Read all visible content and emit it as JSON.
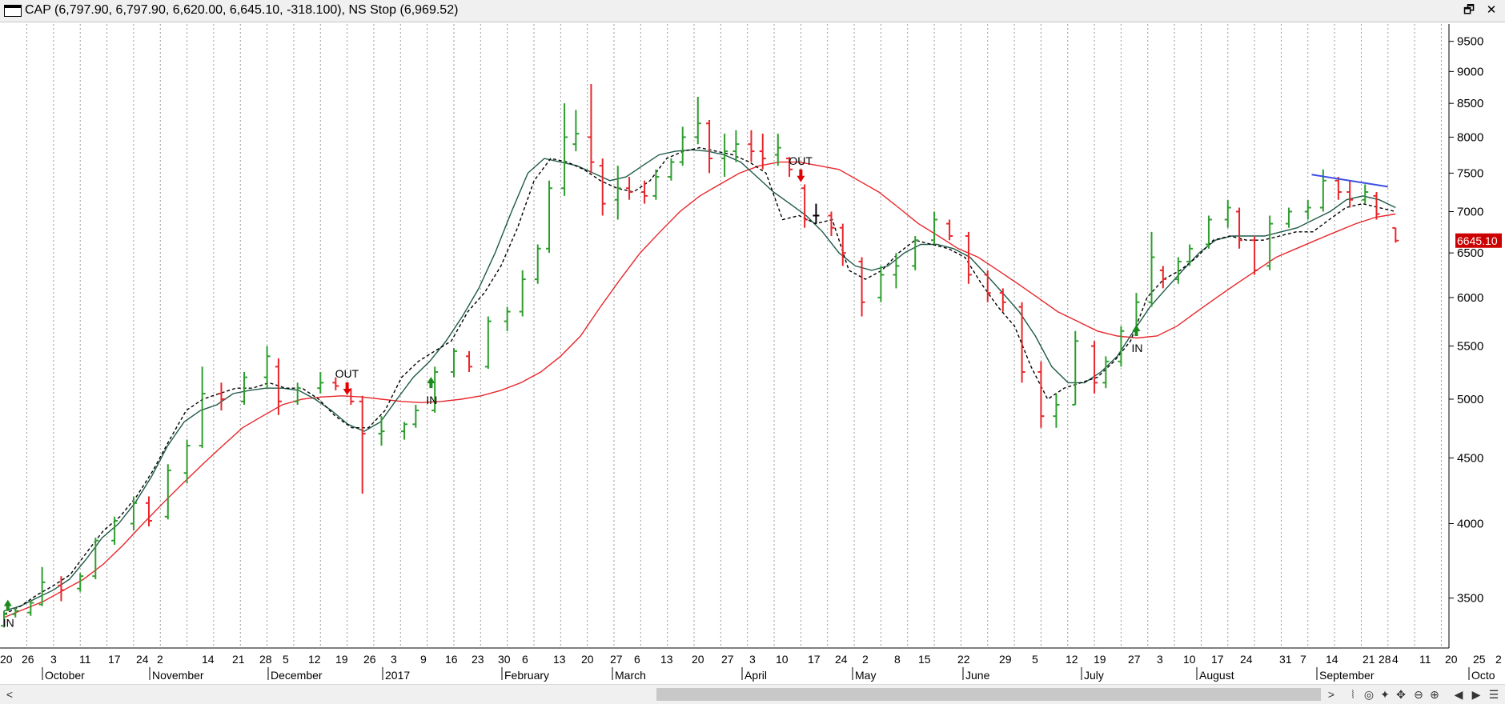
{
  "window": {
    "title": "CAP (6,797.90, 6,797.90, 6,620.00, 6,645.10, -318.100), NS Stop (6,969.52)",
    "restore_label": "🗗",
    "close_label": "✕"
  },
  "statusbar": {
    "left_arrow": "<",
    "right_arrow": ">",
    "buttons": [
      "⦚",
      "◎",
      "✦",
      "✥",
      "⊖",
      "⊕",
      "◀",
      "▶",
      "☰"
    ]
  },
  "colors": {
    "up_bar": "#2e9e2e",
    "down_bar": "#e8262b",
    "neutral_bar": "#000000",
    "ma_fast": "#000000",
    "ma_mid": "#1f5a4a",
    "ma_slow": "#e8262b",
    "trendline": "#3c4fe0",
    "last_price_bg": "#cc0000",
    "grid": "#9a9a9a",
    "signal_in": "#1a8a1a",
    "signal_out": "#e00000"
  },
  "chart_data": {
    "type": "ohlc",
    "title": "CAP (6,797.90, 6,797.90, 6,620.00, 6,645.10, -318.100), NS Stop (6,969.52)",
    "y_scale": "log",
    "ylim": [
      3200,
      9800
    ],
    "grid": "vertical dotted",
    "y_ticks": [
      9500,
      9000,
      8500,
      8000,
      7500,
      7000,
      6500,
      6000,
      5500,
      5000,
      4500,
      4000,
      3500
    ],
    "last_price_label": "6645.10",
    "x_day_ticks": [
      "20",
      "26",
      "3",
      "11",
      "17",
      "24",
      "2",
      "14",
      "21",
      "28",
      "5",
      "12",
      "19",
      "26",
      "3",
      "9",
      "16",
      "23",
      "30",
      "6",
      "13",
      "20",
      "27",
      "6",
      "13",
      "20",
      "27",
      "3",
      "10",
      "17",
      "24",
      "2",
      "8",
      "15",
      "22",
      "29",
      "5",
      "12",
      "19",
      "27",
      "3",
      "10",
      "17",
      "24",
      "31",
      "7",
      "14",
      "21",
      "28",
      "4",
      "11",
      "20",
      "25",
      "2"
    ],
    "x_month_labels": [
      "October",
      "November",
      "December",
      "2017",
      "February",
      "March",
      "April",
      "May",
      "June",
      "July",
      "August",
      "September",
      "Octo"
    ],
    "ohlc": [
      {
        "date": "2016-09-20",
        "o": 3330,
        "h": 3420,
        "l": 3320,
        "c": 3400
      },
      {
        "date": "2016-09-23",
        "o": 3400,
        "h": 3440,
        "l": 3380,
        "c": 3420
      },
      {
        "date": "2016-09-27",
        "o": 3410,
        "h": 3480,
        "l": 3390,
        "c": 3470
      },
      {
        "date": "2016-09-30",
        "o": 3460,
        "h": 3700,
        "l": 3450,
        "c": 3600
      },
      {
        "date": "2016-10-05",
        "o": 3580,
        "h": 3640,
        "l": 3480,
        "c": 3550
      },
      {
        "date": "2016-10-10",
        "o": 3560,
        "h": 3660,
        "l": 3540,
        "c": 3640
      },
      {
        "date": "2016-10-14",
        "o": 3640,
        "h": 3900,
        "l": 3620,
        "c": 3880
      },
      {
        "date": "2016-10-19",
        "o": 3880,
        "h": 4050,
        "l": 3850,
        "c": 4020
      },
      {
        "date": "2016-10-24",
        "o": 4000,
        "h": 4200,
        "l": 3950,
        "c": 4150
      },
      {
        "date": "2016-10-28",
        "o": 4150,
        "h": 4200,
        "l": 3980,
        "c": 4020
      },
      {
        "date": "2016-11-02",
        "o": 4050,
        "h": 4450,
        "l": 4030,
        "c": 4400
      },
      {
        "date": "2016-11-07",
        "o": 4380,
        "h": 4650,
        "l": 4300,
        "c": 4600
      },
      {
        "date": "2016-11-11",
        "o": 4600,
        "h": 5300,
        "l": 4580,
        "c": 5050
      },
      {
        "date": "2016-11-16",
        "o": 5050,
        "h": 5150,
        "l": 4900,
        "c": 5000
      },
      {
        "date": "2016-11-22",
        "o": 4980,
        "h": 5250,
        "l": 4950,
        "c": 5200
      },
      {
        "date": "2016-11-28",
        "o": 5200,
        "h": 5500,
        "l": 5100,
        "c": 5400
      },
      {
        "date": "2016-12-01",
        "o": 5300,
        "h": 5380,
        "l": 4860,
        "c": 4980
      },
      {
        "date": "2016-12-06",
        "o": 4980,
        "h": 5150,
        "l": 4950,
        "c": 5100
      },
      {
        "date": "2016-12-12",
        "o": 5100,
        "h": 5250,
        "l": 5050,
        "c": 5150
      },
      {
        "date": "2016-12-16",
        "o": 5150,
        "h": 5200,
        "l": 5080,
        "c": 5120
      },
      {
        "date": "2016-12-20",
        "o": 5080,
        "h": 5100,
        "l": 4950,
        "c": 4980
      },
      {
        "date": "2016-12-23",
        "o": 4980,
        "h": 5030,
        "l": 4220,
        "c": 4700
      },
      {
        "date": "2016-12-28",
        "o": 4700,
        "h": 4850,
        "l": 4600,
        "c": 4720
      },
      {
        "date": "2017-01-03",
        "o": 4720,
        "h": 4800,
        "l": 4650,
        "c": 4780
      },
      {
        "date": "2017-01-06",
        "o": 4780,
        "h": 4950,
        "l": 4750,
        "c": 4900
      },
      {
        "date": "2017-01-11",
        "o": 4900,
        "h": 5300,
        "l": 4880,
        "c": 5250
      },
      {
        "date": "2017-01-16",
        "o": 5250,
        "h": 5480,
        "l": 5200,
        "c": 5450
      },
      {
        "date": "2017-01-20",
        "o": 5400,
        "h": 5450,
        "l": 5250,
        "c": 5300
      },
      {
        "date": "2017-01-25",
        "o": 5300,
        "h": 5800,
        "l": 5280,
        "c": 5750
      },
      {
        "date": "2017-01-30",
        "o": 5750,
        "h": 5900,
        "l": 5650,
        "c": 5850
      },
      {
        "date": "2017-02-03",
        "o": 5850,
        "h": 6300,
        "l": 5800,
        "c": 6200
      },
      {
        "date": "2017-02-07",
        "o": 6200,
        "h": 6600,
        "l": 6150,
        "c": 6550
      },
      {
        "date": "2017-02-10",
        "o": 6550,
        "h": 7400,
        "l": 6500,
        "c": 7300
      },
      {
        "date": "2017-02-14",
        "o": 7300,
        "h": 8500,
        "l": 7200,
        "c": 8000
      },
      {
        "date": "2017-02-17",
        "o": 7900,
        "h": 8400,
        "l": 7800,
        "c": 8050
      },
      {
        "date": "2017-02-21",
        "o": 8000,
        "h": 8800,
        "l": 7500,
        "c": 7650
      },
      {
        "date": "2017-02-24",
        "o": 7600,
        "h": 7700,
        "l": 6950,
        "c": 7100
      },
      {
        "date": "2017-02-28",
        "o": 7150,
        "h": 7600,
        "l": 6900,
        "c": 7300
      },
      {
        "date": "2017-03-03",
        "o": 7300,
        "h": 7450,
        "l": 7150,
        "c": 7250
      },
      {
        "date": "2017-03-07",
        "o": 7250,
        "h": 7400,
        "l": 7100,
        "c": 7200
      },
      {
        "date": "2017-03-10",
        "o": 7200,
        "h": 7550,
        "l": 7150,
        "c": 7450
      },
      {
        "date": "2017-03-14",
        "o": 7450,
        "h": 7700,
        "l": 7400,
        "c": 7650
      },
      {
        "date": "2017-03-17",
        "o": 7650,
        "h": 8150,
        "l": 7600,
        "c": 8000
      },
      {
        "date": "2017-03-21",
        "o": 8000,
        "h": 8600,
        "l": 7900,
        "c": 8200
      },
      {
        "date": "2017-03-24",
        "o": 8200,
        "h": 8250,
        "l": 7500,
        "c": 7700
      },
      {
        "date": "2017-03-28",
        "o": 7700,
        "h": 8050,
        "l": 7450,
        "c": 7800
      },
      {
        "date": "2017-03-31",
        "o": 7800,
        "h": 8100,
        "l": 7650,
        "c": 7900
      },
      {
        "date": "2017-04-04",
        "o": 7900,
        "h": 8100,
        "l": 7650,
        "c": 7800
      },
      {
        "date": "2017-04-07",
        "o": 7800,
        "h": 8050,
        "l": 7550,
        "c": 7700
      },
      {
        "date": "2017-04-11",
        "o": 7750,
        "h": 8050,
        "l": 7600,
        "c": 7850
      },
      {
        "date": "2017-04-14",
        "o": 7700,
        "h": 7720,
        "l": 7450,
        "c": 7550
      },
      {
        "date": "2017-04-18",
        "o": 7300,
        "h": 7350,
        "l": 6800,
        "c": 6900
      },
      {
        "date": "2017-04-21",
        "o": 6950,
        "h": 7100,
        "l": 6850,
        "c": 6950
      },
      {
        "date": "2017-04-25",
        "o": 6950,
        "h": 7000,
        "l": 6700,
        "c": 6800
      },
      {
        "date": "2017-04-28",
        "o": 6800,
        "h": 6850,
        "l": 6350,
        "c": 6500
      },
      {
        "date": "2017-05-03",
        "o": 6400,
        "h": 6450,
        "l": 5800,
        "c": 5950
      },
      {
        "date": "2017-05-08",
        "o": 6000,
        "h": 6350,
        "l": 5950,
        "c": 6250
      },
      {
        "date": "2017-05-12",
        "o": 6250,
        "h": 6500,
        "l": 6100,
        "c": 6350
      },
      {
        "date": "2017-05-17",
        "o": 6350,
        "h": 6700,
        "l": 6300,
        "c": 6650
      },
      {
        "date": "2017-05-22",
        "o": 6650,
        "h": 7000,
        "l": 6600,
        "c": 6900
      },
      {
        "date": "2017-05-26",
        "o": 6850,
        "h": 6900,
        "l": 6650,
        "c": 6700
      },
      {
        "date": "2017-05-31",
        "o": 6700,
        "h": 6750,
        "l": 6150,
        "c": 6250
      },
      {
        "date": "2017-06-05",
        "o": 6250,
        "h": 6300,
        "l": 5950,
        "c": 6050
      },
      {
        "date": "2017-06-09",
        "o": 6050,
        "h": 6100,
        "l": 5850,
        "c": 5950
      },
      {
        "date": "2017-06-14",
        "o": 5900,
        "h": 5950,
        "l": 5150,
        "c": 5250
      },
      {
        "date": "2017-06-19",
        "o": 5250,
        "h": 5350,
        "l": 4750,
        "c": 4850
      },
      {
        "date": "2017-06-23",
        "o": 4850,
        "h": 5050,
        "l": 4750,
        "c": 4950
      },
      {
        "date": "2017-06-28",
        "o": 4950,
        "h": 5650,
        "l": 4950,
        "c": 5550
      },
      {
        "date": "2017-07-03",
        "o": 5500,
        "h": 5550,
        "l": 5050,
        "c": 5150
      },
      {
        "date": "2017-07-06",
        "o": 5150,
        "h": 5400,
        "l": 5100,
        "c": 5350
      },
      {
        "date": "2017-07-10",
        "o": 5350,
        "h": 5700,
        "l": 5300,
        "c": 5650
      },
      {
        "date": "2017-07-14",
        "o": 5650,
        "h": 6050,
        "l": 5600,
        "c": 5950
      },
      {
        "date": "2017-07-18",
        "o": 5950,
        "h": 6750,
        "l": 5900,
        "c": 6450
      },
      {
        "date": "2017-07-21",
        "o": 6300,
        "h": 6350,
        "l": 6100,
        "c": 6200
      },
      {
        "date": "2017-07-25",
        "o": 6200,
        "h": 6450,
        "l": 6150,
        "c": 6400
      },
      {
        "date": "2017-07-28",
        "o": 6400,
        "h": 6600,
        "l": 6350,
        "c": 6550
      },
      {
        "date": "2017-08-02",
        "o": 6600,
        "h": 6950,
        "l": 6550,
        "c": 6900
      },
      {
        "date": "2017-08-07",
        "o": 6900,
        "h": 7150,
        "l": 6800,
        "c": 7050
      },
      {
        "date": "2017-08-10",
        "o": 7000,
        "h": 7050,
        "l": 6550,
        "c": 6650
      },
      {
        "date": "2017-08-14",
        "o": 6650,
        "h": 6700,
        "l": 6250,
        "c": 6300
      },
      {
        "date": "2017-08-18",
        "o": 6350,
        "h": 6950,
        "l": 6300,
        "c": 6850
      },
      {
        "date": "2017-08-23",
        "o": 6850,
        "h": 7050,
        "l": 6800,
        "c": 7000
      },
      {
        "date": "2017-08-28",
        "o": 7000,
        "h": 7150,
        "l": 6900,
        "c": 7050
      },
      {
        "date": "2017-09-01",
        "o": 7050,
        "h": 7550,
        "l": 7000,
        "c": 7400
      },
      {
        "date": "2017-09-05",
        "o": 7400,
        "h": 7450,
        "l": 7150,
        "c": 7250
      },
      {
        "date": "2017-09-08",
        "o": 7250,
        "h": 7400,
        "l": 7050,
        "c": 7150
      },
      {
        "date": "2017-09-12",
        "o": 7150,
        "h": 7350,
        "l": 7100,
        "c": 7250
      },
      {
        "date": "2017-09-15",
        "o": 7200,
        "h": 7250,
        "l": 6900,
        "c": 6970
      },
      {
        "date": "2017-09-20",
        "o": 6797.9,
        "h": 6797.9,
        "l": 6620,
        "c": 6645.1
      }
    ],
    "ma_fast": [
      3400,
      3450,
      3520,
      3580,
      3650,
      3800,
      3950,
      4050,
      4200,
      4400,
      4650,
      4900,
      5000,
      5050,
      5100,
      5100,
      5150,
      5100,
      5100,
      5000,
      4850,
      4750,
      4750,
      4900,
      5200,
      5350,
      5450,
      5550,
      5850,
      6050,
      6350,
      6800,
      7400,
      7700,
      7650,
      7550,
      7400,
      7300,
      7250,
      7400,
      7700,
      7800,
      7850,
      7800,
      7750,
      7650,
      7500,
      6900,
      6950,
      6850,
      6900,
      6300,
      6200,
      6300,
      6500,
      6650,
      6600,
      6550,
      6450,
      6150,
      5900,
      5700,
      5300,
      5000,
      5100,
      5150,
      5200,
      5350,
      5550,
      6000,
      6200,
      6300,
      6450,
      6650,
      6700,
      6650,
      6650,
      6700,
      6750,
      6750,
      6900,
      7050,
      7100,
      7050,
      7000
    ],
    "ma_mid": [
      3420,
      3450,
      3500,
      3550,
      3620,
      3750,
      3900,
      4000,
      4150,
      4350,
      4600,
      4800,
      4900,
      4950,
      5050,
      5080,
      5100,
      5100,
      5080,
      5000,
      4900,
      4780,
      4720,
      4800,
      5000,
      5200,
      5350,
      5550,
      5800,
      6100,
      6500,
      7000,
      7500,
      7700,
      7650,
      7600,
      7500,
      7400,
      7450,
      7600,
      7750,
      7800,
      7820,
      7800,
      7750,
      7650,
      7450,
      7250,
      7100,
      6950,
      6750,
      6500,
      6350,
      6300,
      6350,
      6500,
      6600,
      6600,
      6550,
      6450,
      6250,
      6050,
      5850,
      5600,
      5300,
      5150,
      5150,
      5250,
      5400,
      5650,
      5900,
      6100,
      6300,
      6500,
      6650,
      6700,
      6700,
      6700,
      6750,
      6800,
      6900,
      7000,
      7150,
      7200,
      7150,
      7050
    ],
    "ma_slow": [
      3380,
      3430,
      3480,
      3550,
      3620,
      3720,
      3850,
      4000,
      4150,
      4300,
      4450,
      4600,
      4750,
      4850,
      4950,
      5000,
      5020,
      5030,
      5020,
      5000,
      4980,
      4970,
      4980,
      5000,
      5030,
      5080,
      5150,
      5250,
      5400,
      5600,
      5900,
      6200,
      6500,
      6750,
      7000,
      7200,
      7350,
      7500,
      7600,
      7650,
      7650,
      7600,
      7550,
      7400,
      7250,
      7050,
      6850,
      6700,
      6550,
      6450,
      6300,
      6150,
      6000,
      5850,
      5750,
      5650,
      5600,
      5580,
      5600,
      5700,
      5850,
      6000,
      6150,
      6300,
      6450,
      6550,
      6650,
      6750,
      6850,
      6930,
      6970
    ],
    "trendline": {
      "start": {
        "date": "2017-08-29",
        "value": 7480
      },
      "end": {
        "date": "2017-09-18",
        "value": 7320
      }
    },
    "signals": [
      {
        "label": "IN",
        "date": "2016-09-21",
        "value": 3420,
        "dir": "up"
      },
      {
        "label": "OUT",
        "date": "2016-12-19",
        "value": 5050,
        "dir": "down"
      },
      {
        "label": "IN",
        "date": "2017-01-10",
        "value": 5100,
        "dir": "up"
      },
      {
        "label": "OUT",
        "date": "2017-04-17",
        "value": 7400,
        "dir": "down"
      },
      {
        "label": "IN",
        "date": "2017-07-14",
        "value": 5600,
        "dir": "up"
      }
    ]
  }
}
